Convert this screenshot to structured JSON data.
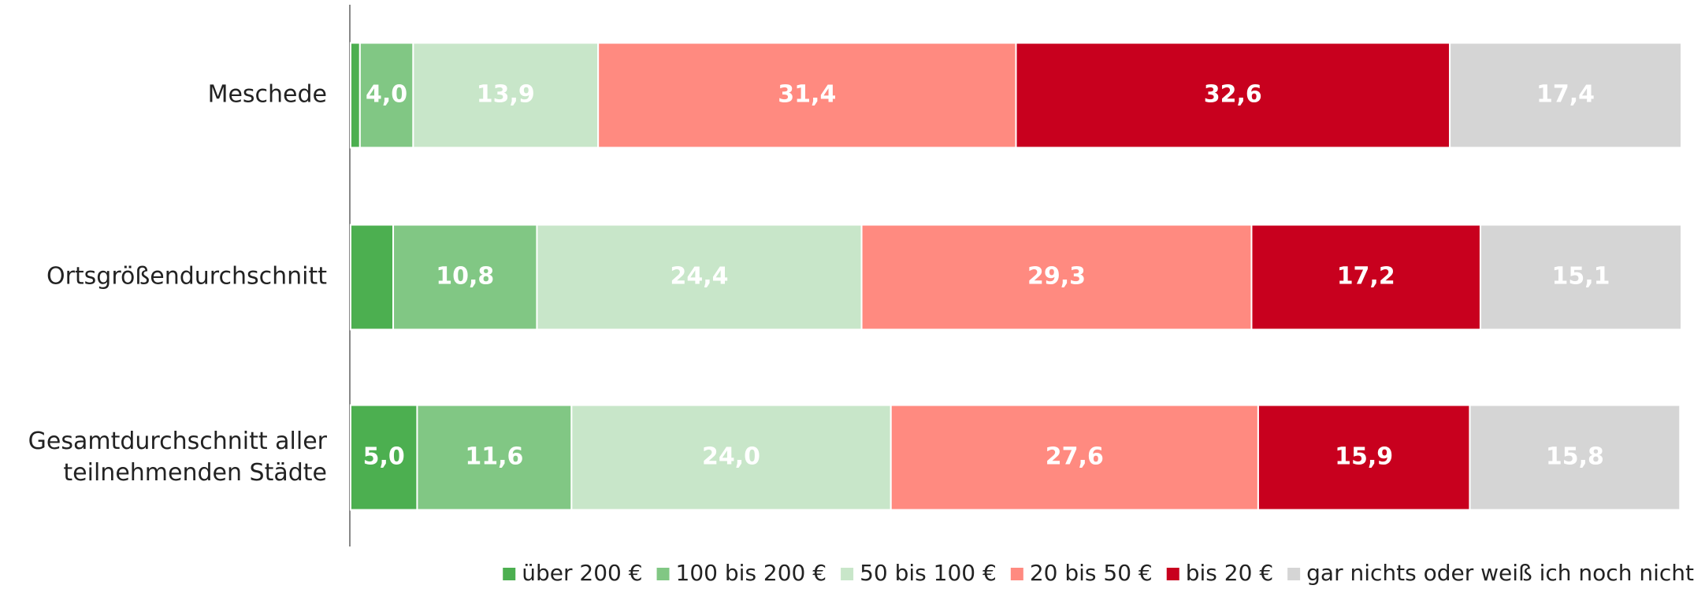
{
  "chart_data": {
    "type": "stacked-barh",
    "categories": [
      "Meschede",
      "Ortsgrößendurchschnitt",
      "Gesamtdurchschnitt aller\nteilnehmenden Städte"
    ],
    "xlim": [
      0,
      100
    ],
    "legend": "bottom",
    "series": [
      {
        "name": "über 200 €",
        "color": "#4caf50",
        "values": [
          0.7,
          3.2,
          5.0
        ],
        "value_labels": [
          null,
          null,
          "5,0"
        ]
      },
      {
        "name": "100 bis 200 €",
        "color": "#81c784",
        "values": [
          4.0,
          10.8,
          11.6
        ],
        "value_labels": [
          "4,0",
          "10,8",
          "11,6"
        ]
      },
      {
        "name": "50 bis 100 €",
        "color": "#c8e6c9",
        "values": [
          13.9,
          24.4,
          24.0
        ],
        "value_labels": [
          "13,9",
          "24,4",
          "24,0"
        ]
      },
      {
        "name": "20 bis 50 €",
        "color": "#ff8a80",
        "values": [
          31.4,
          29.3,
          27.6
        ],
        "value_labels": [
          "31,4",
          "29,3",
          "27,6"
        ]
      },
      {
        "name": "bis 20 €",
        "color": "#c8001e",
        "values": [
          32.6,
          17.2,
          15.9
        ],
        "value_labels": [
          "32,6",
          "17,2",
          "15,9"
        ]
      },
      {
        "name": "gar nichts oder weiß ich noch nicht",
        "color": "#d5d5d5",
        "values": [
          17.4,
          15.1,
          15.8
        ],
        "value_labels": [
          "17,4",
          "15,1",
          "15,8"
        ]
      }
    ]
  }
}
